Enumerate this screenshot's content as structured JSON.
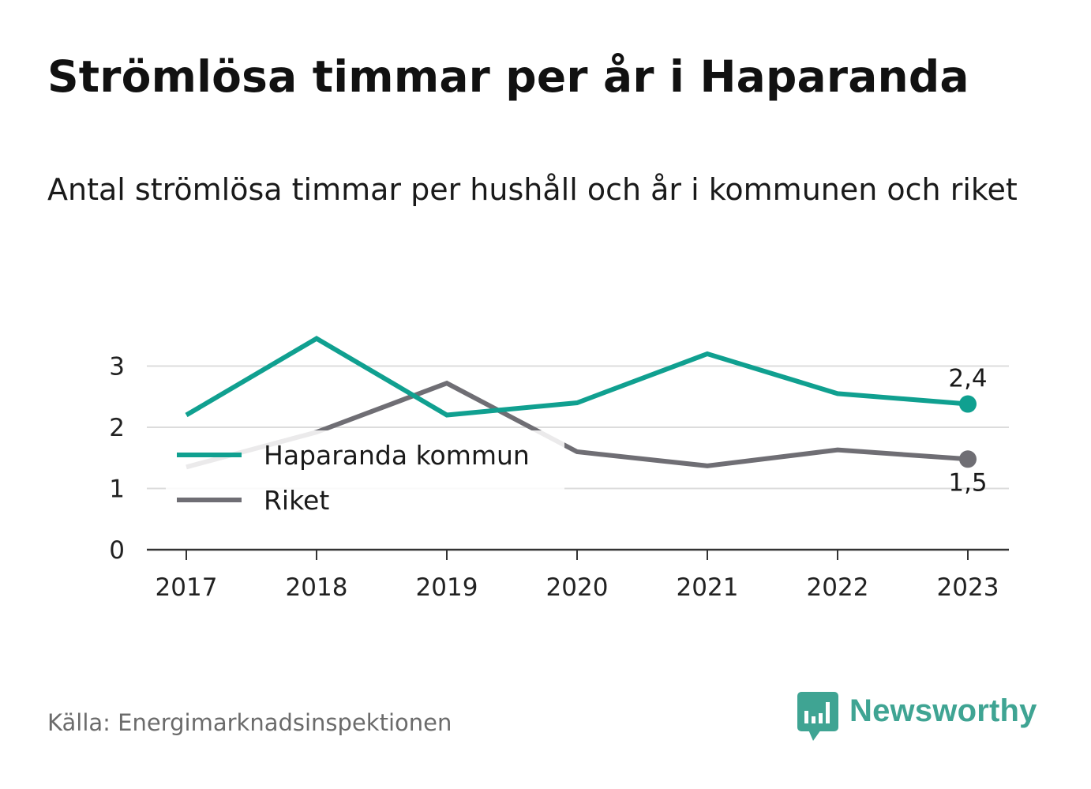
{
  "title": "Strömlösa timmar per år i Haparanda",
  "subtitle": "Antal strömlösa timmar per hushåll och år i kommunen och riket",
  "source": "Källa: Energimarknadsinspektionen",
  "brand": {
    "name": "Newsworthy",
    "icon": "newsworthy-logo-icon",
    "color": "#3fa493"
  },
  "chart_data": {
    "type": "line",
    "x": [
      "2017",
      "2018",
      "2019",
      "2020",
      "2021",
      "2022",
      "2023"
    ],
    "ylim": [
      0,
      3.5
    ],
    "yticks": [
      "0",
      "1",
      "2",
      "3"
    ],
    "grid": true,
    "legend_position": "left, inside plot",
    "series": [
      {
        "name": "Haparanda kommun",
        "color": "#10a090",
        "values": [
          2.2,
          3.45,
          2.2,
          2.4,
          3.2,
          2.55,
          2.38
        ],
        "end_label": "2,4"
      },
      {
        "name": "Riket",
        "color": "#6f6e74",
        "values": [
          1.35,
          1.92,
          2.72,
          1.6,
          1.37,
          1.63,
          1.48
        ],
        "end_label": "1,5"
      }
    ]
  }
}
